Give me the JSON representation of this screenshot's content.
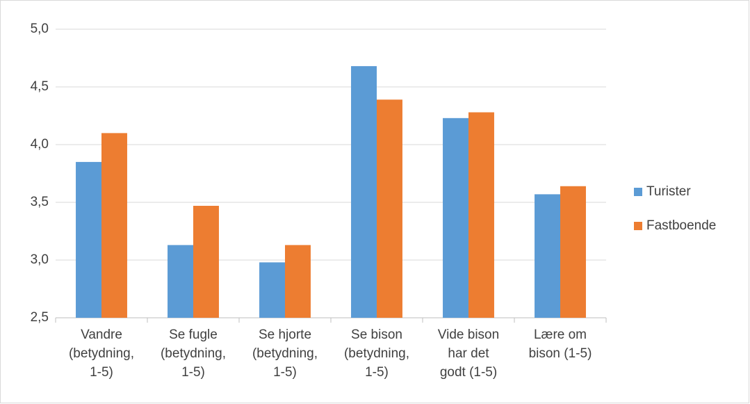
{
  "chart_data": {
    "type": "bar",
    "categories": [
      "Vandre\n(betydning,\n1-5)",
      "Se fugle\n(betydning,\n1-5)",
      "Se hjorte\n(betydning,\n1-5)",
      "Se bison\n(betydning,\n1-5)",
      "Vide bison\nhar det\ngodt (1-5)",
      "Lære om\nbison (1-5)"
    ],
    "series": [
      {
        "name": "Turister",
        "color": "#5b9bd5",
        "values": [
          3.85,
          3.13,
          2.98,
          4.68,
          4.23,
          3.57
        ]
      },
      {
        "name": "Fastboende",
        "color": "#ed7d31",
        "values": [
          4.1,
          3.47,
          3.13,
          4.39,
          4.28,
          3.64
        ]
      }
    ],
    "ylim": [
      2.5,
      5.0
    ],
    "yticks": [
      {
        "value": 2.5,
        "label": "2,5"
      },
      {
        "value": 3.0,
        "label": "3,0"
      },
      {
        "value": 3.5,
        "label": "3,5"
      },
      {
        "value": 4.0,
        "label": "4,0"
      },
      {
        "value": 4.5,
        "label": "4,5"
      },
      {
        "value": 5.0,
        "label": "5,0"
      }
    ],
    "grid": true,
    "legend": "right"
  }
}
